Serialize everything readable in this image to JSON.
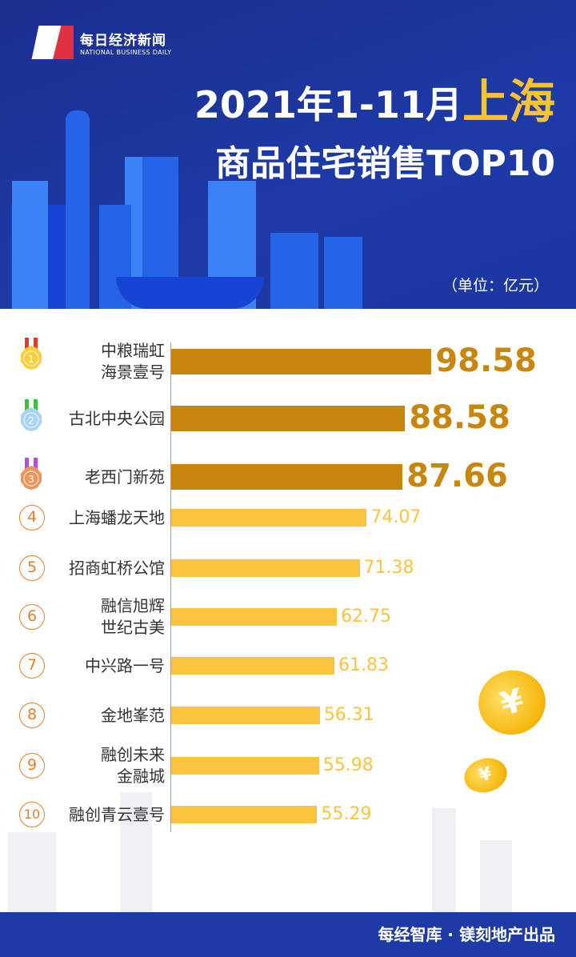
{
  "header": {
    "logo_cn": "每日经济新闻",
    "logo_en": "NATIONAL BUSINESS DAILY",
    "title_prefix": "2021年1-11月",
    "title_city": "上海",
    "subtitle": "商品住宅销售TOP10",
    "unit": "（单位：亿元）"
  },
  "chart_data": {
    "type": "bar",
    "orientation": "horizontal",
    "unit": "亿元",
    "categories": [
      "中粮瑞虹\n海景壹号",
      "古北中央公园",
      "老西门新苑",
      "上海蟠龙天地",
      "招商虹桥公馆",
      "融信旭辉\n世纪古美",
      "中兴路一号",
      "金地峯范",
      "融创未来\n金融城",
      "融创青云壹号"
    ],
    "values": [
      98.58,
      88.58,
      87.66,
      74.07,
      71.38,
      62.75,
      61.83,
      56.31,
      55.98,
      55.29
    ],
    "value_labels": [
      "98.58",
      "88.58",
      "87.66",
      "74.07",
      "71.38",
      "62.75",
      "61.83",
      "56.31",
      "55.98",
      "55.29"
    ],
    "ranks": [
      "1",
      "2",
      "3",
      "4",
      "5",
      "6",
      "7",
      "8",
      "9",
      "10"
    ],
    "colors": {
      "top3": "#c9860e",
      "others": "#fbc43f"
    }
  },
  "coin_symbol": "¥",
  "footer": {
    "text": "每经智库 · 镁刻地产出品"
  }
}
